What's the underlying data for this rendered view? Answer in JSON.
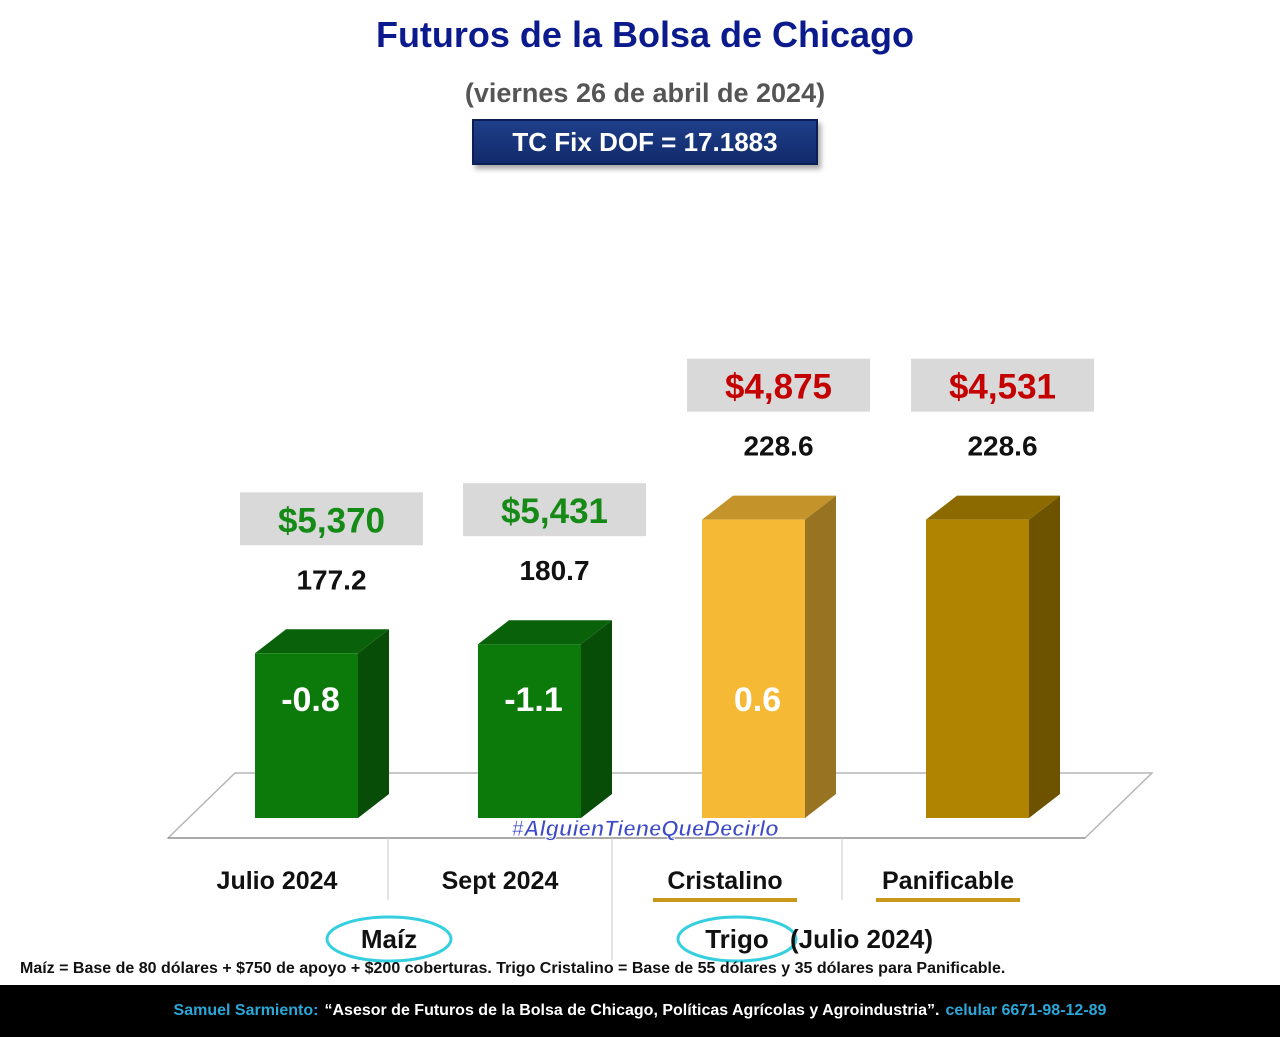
{
  "header": {
    "title": "Futuros de la Bolsa de Chicago",
    "subtitle": "(viernes 26 de abril de 2024)",
    "exchange_rate": "TC Fix DOF = 17.1883"
  },
  "chart_data": {
    "type": "bar",
    "categories": [
      "Julio 2024",
      "Sept 2024",
      "Cristalino",
      "Panificable"
    ],
    "values": [
      177.2,
      180.7,
      228.6,
      228.6
    ],
    "value_labels": [
      "177.2",
      "180.7",
      "228.6",
      "228.6"
    ],
    "price_labels": [
      "$5,370",
      "$5,431",
      "$4,875",
      "$4,531"
    ],
    "change_labels": [
      "-0.8",
      "-1.1",
      "0.6",
      ""
    ],
    "bar_colors": [
      "#0b7a0b",
      "#0b7a0b",
      "#f5b935",
      "#b08400"
    ],
    "price_colors": [
      "#168a16",
      "#168a16",
      "#c40000",
      "#c40000"
    ],
    "group_labels": [
      "Maíz",
      "Trigo"
    ],
    "group_suffix": "(Julio 2024)",
    "watermark": "#AlguienTieneQueDecirlo"
  },
  "note": "Maíz = Base de 80 dólares + $750 de apoyo + $200 coberturas. Trigo Cristalino = Base de 55 dólares y 35 dólares para Panificable.",
  "footer": {
    "author": "Samuel Sarmiento:",
    "quote": "“Asesor de Futuros de la Bolsa de Chicago, Políticas Agrícolas y Agroindustria”.",
    "phone": "celular 6671-98-12-89"
  }
}
